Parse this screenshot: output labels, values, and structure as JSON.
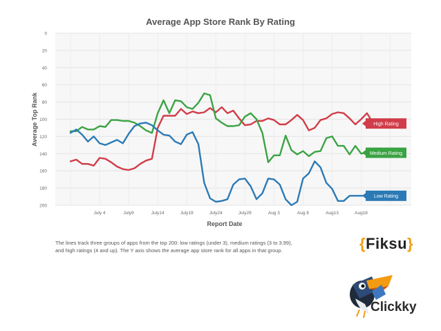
{
  "chart_data": {
    "type": "line",
    "title": "Average App Store Rank By Rating",
    "xlabel": "Report Date",
    "ylabel": "Average Top Rank",
    "ylim": [
      0,
      200
    ],
    "y_inverted": true,
    "yticks": [
      0,
      20,
      40,
      60,
      80,
      100,
      120,
      140,
      160,
      180,
      200
    ],
    "x_count": 57,
    "xticks": [
      {
        "label": "July 4",
        "index": 5
      },
      {
        "label": "July9",
        "index": 10
      },
      {
        "label": "July14",
        "index": 15
      },
      {
        "label": "July19",
        "index": 20
      },
      {
        "label": "July24",
        "index": 25
      },
      {
        "label": "July29",
        "index": 30
      },
      {
        "label": "Aug 3",
        "index": 35
      },
      {
        "label": "Aug 8",
        "index": 40
      },
      {
        "label": "Aug13",
        "index": 45
      },
      {
        "label": "Aug18",
        "index": 50
      }
    ],
    "grid": true,
    "series": [
      {
        "name": "High Rating",
        "color": "#d03c48",
        "values": [
          149,
          147,
          152,
          152,
          154,
          145,
          146,
          150,
          155,
          158,
          159,
          157,
          152,
          148,
          146,
          110,
          96,
          96,
          96,
          88,
          94,
          91,
          93,
          92,
          87,
          92,
          86,
          93,
          90,
          99,
          107,
          106,
          102,
          102,
          99,
          101,
          106,
          106,
          101,
          95,
          101,
          113,
          110,
          101,
          99,
          94,
          92,
          93,
          99,
          106,
          100,
          93,
          104,
          105,
          105,
          105,
          105
        ]
      },
      {
        "name": "Medium Rating",
        "color": "#3aa343",
        "values": [
          114,
          114,
          109,
          112,
          112,
          108,
          109,
          101,
          101,
          102,
          102,
          104,
          108,
          113,
          116,
          93,
          78,
          93,
          78,
          79,
          86,
          88,
          81,
          70,
          72,
          99,
          104,
          108,
          108,
          107,
          97,
          93,
          100,
          116,
          150,
          142,
          142,
          119,
          136,
          141,
          137,
          143,
          138,
          137,
          122,
          120,
          131,
          131,
          141,
          131,
          140,
          139,
          139,
          139,
          139,
          139,
          139
        ]
      },
      {
        "name": "Low Rating",
        "color": "#2b7ab6",
        "values": [
          116,
          112,
          118,
          126,
          120,
          128,
          130,
          127,
          124,
          128,
          117,
          108,
          105,
          104,
          107,
          113,
          118,
          119,
          126,
          129,
          118,
          115,
          129,
          174,
          192,
          196,
          195,
          193,
          176,
          170,
          169,
          178,
          193,
          186,
          169,
          170,
          176,
          193,
          200,
          196,
          169,
          163,
          149,
          156,
          174,
          181,
          195,
          195,
          189,
          189,
          189,
          189,
          189,
          189,
          189,
          189,
          189
        ]
      }
    ],
    "legend": [
      "High Rating",
      "Medium Rating",
      "Low Rating"
    ]
  },
  "caption": {
    "line1": "The lines track three groups of apps from the top 200: low ratings (under 3), medium ratings (3 to 3.99),",
    "line2": "and high ratings (4 and up). The Y axis shows the average app store rank for all apps in that group."
  },
  "brands": {
    "fiksu": "Fiksu",
    "clickky": "Clickky"
  }
}
